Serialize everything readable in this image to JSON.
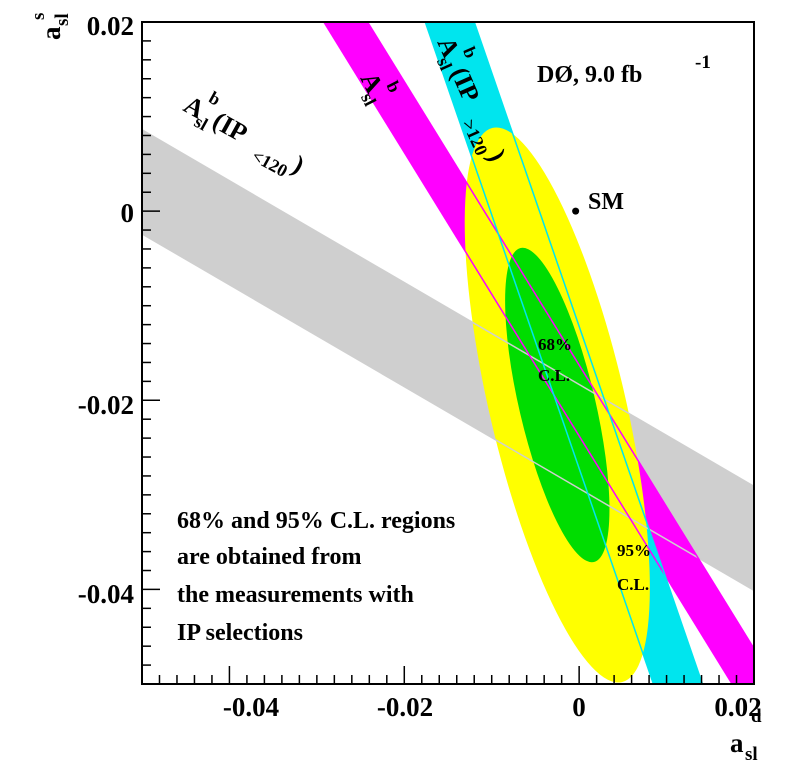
{
  "chart_data": {
    "type": "contour",
    "xlabel": {
      "main": "a",
      "sub": "sl",
      "sup": "d"
    },
    "ylabel": {
      "main": "a",
      "sub": "sl",
      "sup": "s"
    },
    "xlim": [
      -0.05,
      0.02
    ],
    "ylim": [
      -0.05,
      0.02
    ],
    "xticks": [
      {
        "value": -0.04,
        "label": "-0.04"
      },
      {
        "value": -0.02,
        "label": "-0.02"
      },
      {
        "value": 0,
        "label": "0"
      },
      {
        "value": 0.02,
        "label": "0.02"
      }
    ],
    "yticks": [
      {
        "value": -0.04,
        "label": "-0.04"
      },
      {
        "value": -0.02,
        "label": "-0.02"
      },
      {
        "value": 0,
        "label": "0"
      },
      {
        "value": 0.02,
        "label": "0.02"
      }
    ],
    "experiment": {
      "main": "DØ, 9.0 fb",
      "sup": "-1"
    },
    "bands": [
      {
        "id": "ip-lt-120",
        "label": {
          "main": "A",
          "sub": "sl",
          "sup": "b",
          "rest": "(IP",
          "rsub": "<120",
          "close": ")"
        },
        "color": "#cfcfcf",
        "center_line": [
          [
            -0.05,
            0.0031
          ],
          [
            0.02,
            -0.0346
          ]
        ],
        "half_width_y": 0.0055
      },
      {
        "id": "inclusive",
        "label": {
          "main": "A",
          "sub": "sl",
          "sup": "b"
        },
        "color": "#ff00ff",
        "center_line": [
          [
            -0.0267,
            0.02
          ],
          [
            0.02,
            -0.05
          ]
        ],
        "half_width_x": 0.0025
      },
      {
        "id": "ip-gt-120",
        "label": {
          "main": "A",
          "sub": "sl",
          "sup": "b",
          "rest": "(IP",
          "rsub": ">120",
          "close": ")"
        },
        "color": "#00e5ee",
        "center_line": [
          [
            -0.0148,
            0.02
          ],
          [
            0.0113,
            -0.05
          ]
        ],
        "half_width_x": 0.0028
      }
    ],
    "regions": [
      {
        "id": "cl95",
        "label": "95%\nC.L.",
        "label_lines": [
          "95%",
          "C.L."
        ],
        "color": "#ffff00",
        "center": [
          -0.0025,
          -0.0205
        ],
        "semi_major_x": 0.0074,
        "semi_major_y": -0.0293,
        "semi_minor_x": 0.0075,
        "semi_minor_y": 0.0019
      },
      {
        "id": "cl68",
        "label": "68%\nC.L.",
        "label_lines": [
          "68%",
          "C.L."
        ],
        "color": "#00dd00",
        "center": [
          -0.0025,
          -0.0205
        ],
        "semi_major_x": 0.0042,
        "semi_major_y": -0.0166,
        "semi_minor_x": 0.0042,
        "semi_minor_y": 0.00106
      }
    ],
    "points": [
      {
        "id": "sm",
        "label": "SM",
        "x": -0.0004,
        "y": 0.0
      }
    ],
    "note_lines": [
      "68% and 95% C.L. regions",
      "are obtained from",
      "the measurements with",
      "IP selections"
    ]
  }
}
